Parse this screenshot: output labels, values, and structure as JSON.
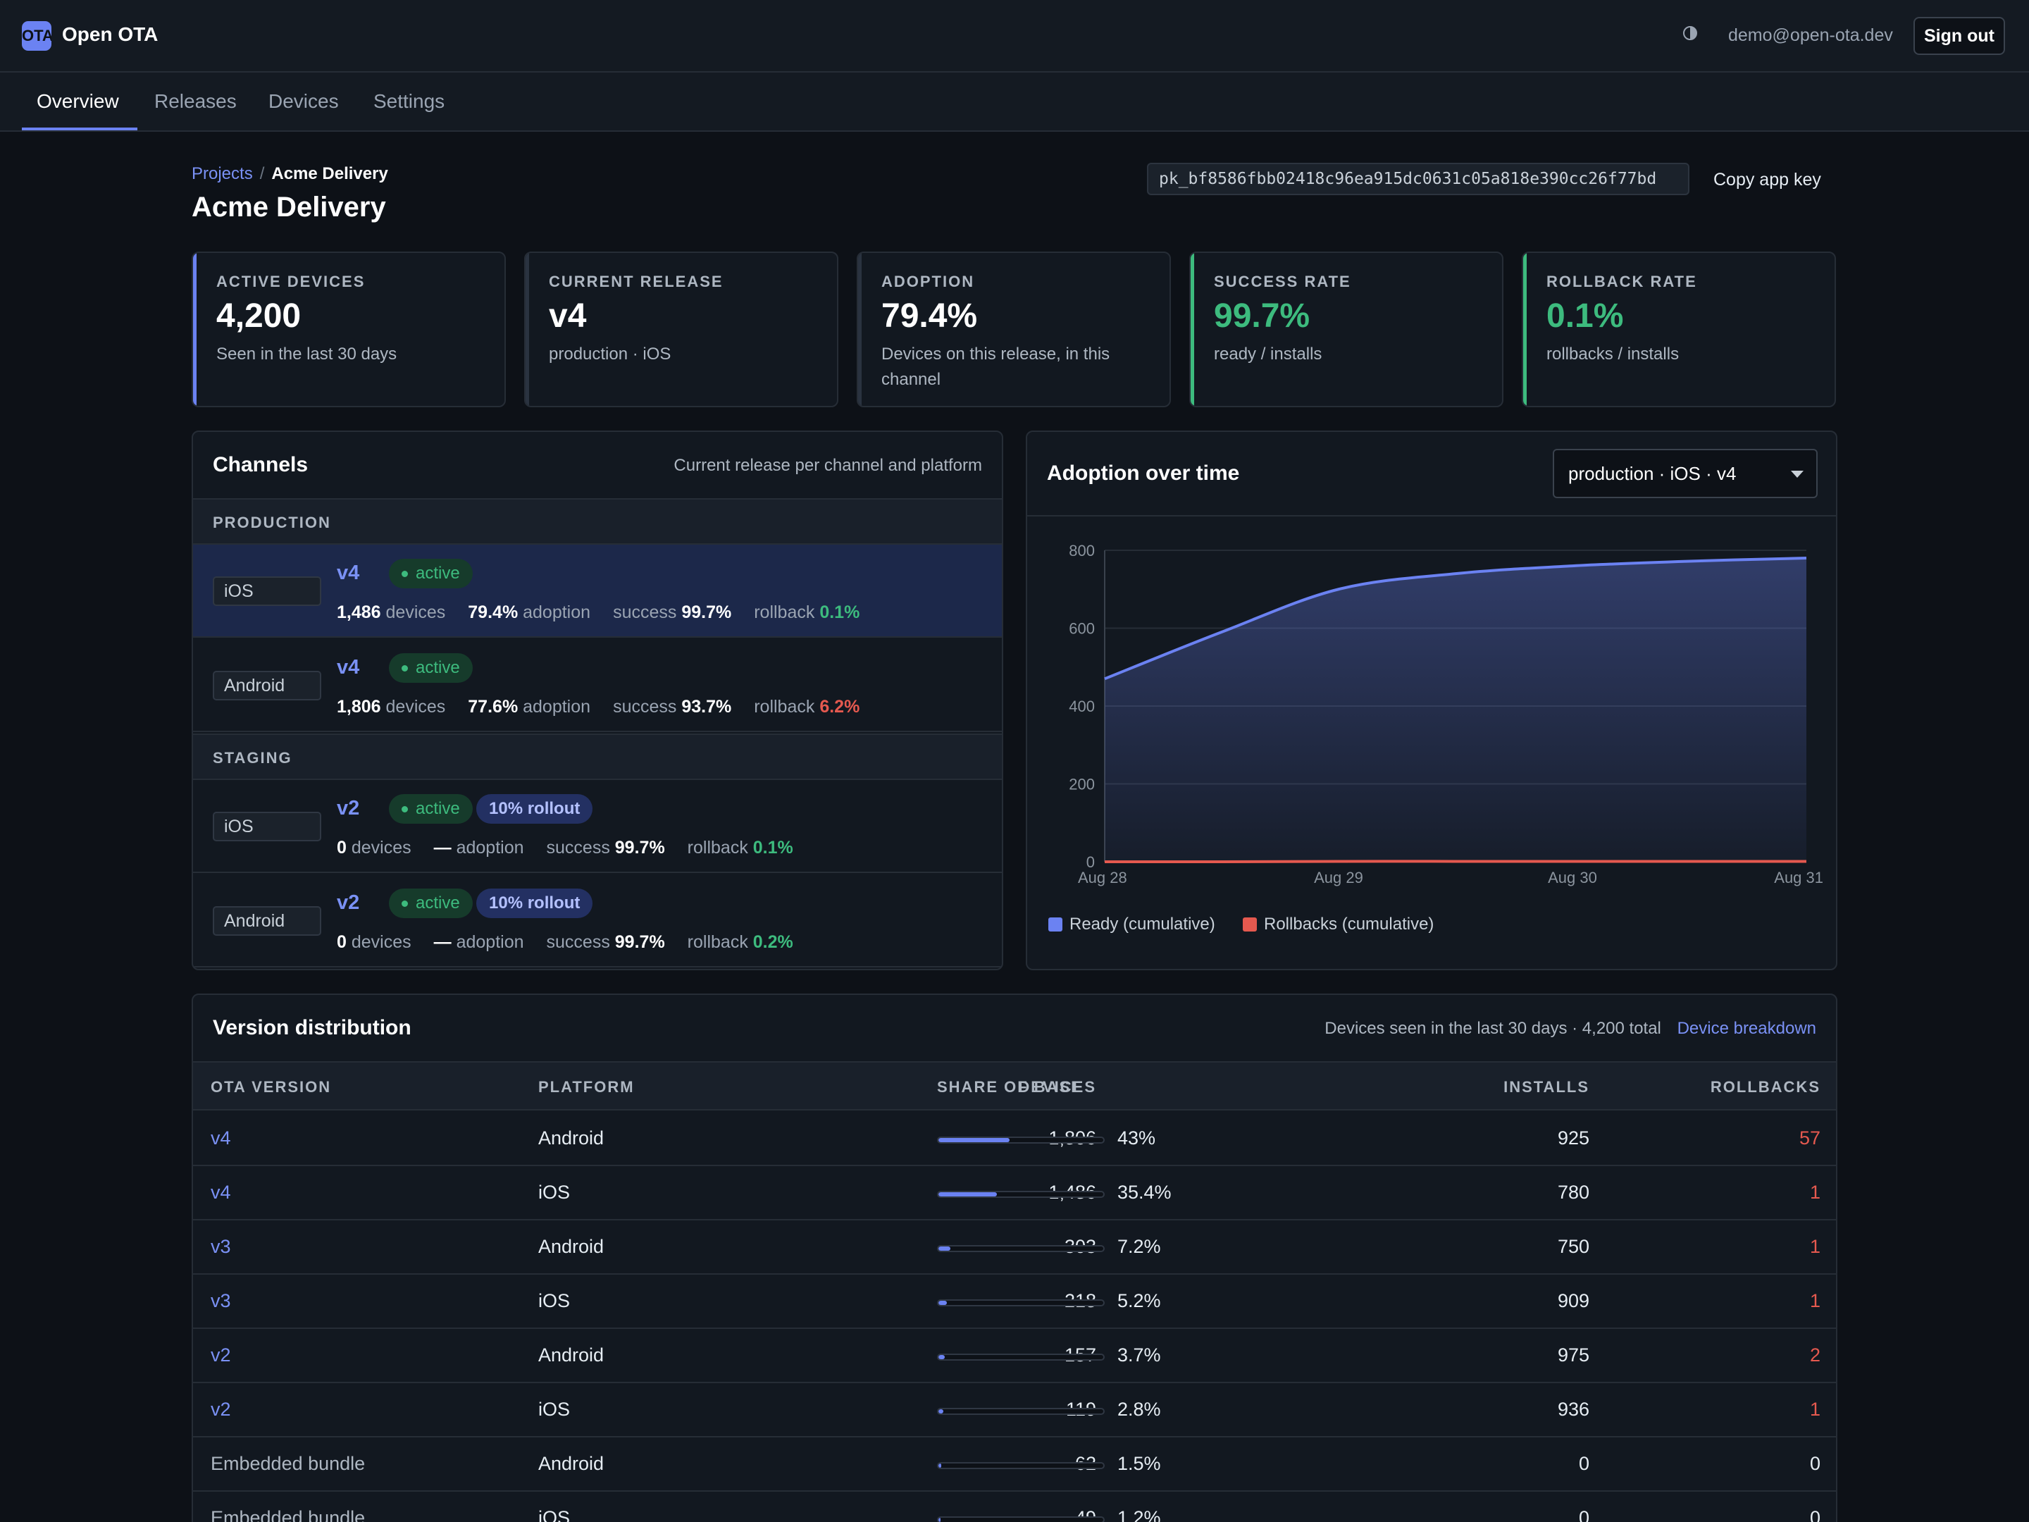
{
  "app": {
    "logo_letters": "OTA",
    "name": "Open OTA",
    "user_email": "demo@open-ota.dev",
    "sign_out_label": "Sign out"
  },
  "nav": {
    "tabs": [
      "Overview",
      "Releases",
      "Devices",
      "Settings"
    ],
    "active_tab": "Overview"
  },
  "breadcrumb": {
    "parent": "Projects",
    "separator": "/",
    "current": "Acme Delivery"
  },
  "page": {
    "title": "Acme Delivery",
    "app_key": "pk_bf8586fbb02418c96ea915dc0631c05a818e390cc26f77bd",
    "copy_key_label": "Copy app key"
  },
  "stats": [
    {
      "label": "ACTIVE DEVICES",
      "value": "4,200",
      "sub": "Seen in the last 30 days",
      "accent": "#6b82f2",
      "value_color": "default"
    },
    {
      "label": "CURRENT RELEASE",
      "value": "v4",
      "sub": "production · iOS",
      "accent": "#2a3340",
      "value_color": "default"
    },
    {
      "label": "ADOPTION",
      "value": "79.4%",
      "sub": "Devices on this release, in this channel",
      "accent": "#2a3340",
      "value_color": "default"
    },
    {
      "label": "SUCCESS RATE",
      "value": "99.7%",
      "sub": "ready / installs",
      "accent": "#3dbb7e",
      "value_color": "green"
    },
    {
      "label": "ROLLBACK RATE",
      "value": "0.1%",
      "sub": "rollbacks / installs",
      "accent": "#3dbb7e",
      "value_color": "green"
    }
  ],
  "channels": {
    "title": "Channels",
    "subtitle": "Current release per channel and platform",
    "sections": [
      {
        "name": "PRODUCTION",
        "rows": [
          {
            "platform": "iOS",
            "version": "v4",
            "status": "active",
            "rollout": "",
            "devices": "1,486",
            "devices_label": "devices",
            "adoption": "79.4%",
            "adoption_label": "adoption",
            "success_label": "success",
            "success": "99.7%",
            "rollback_label": "rollback",
            "rollback": "0.1%",
            "rollback_color": "green",
            "selected": true
          },
          {
            "platform": "Android",
            "version": "v4",
            "status": "active",
            "rollout": "",
            "devices": "1,806",
            "devices_label": "devices",
            "adoption": "77.6%",
            "adoption_label": "adoption",
            "success_label": "success",
            "success": "93.7%",
            "rollback_label": "rollback",
            "rollback": "6.2%",
            "rollback_color": "red",
            "selected": false
          }
        ]
      },
      {
        "name": "STAGING",
        "rows": [
          {
            "platform": "iOS",
            "version": "v2",
            "status": "active",
            "rollout": "10% rollout",
            "devices": "0",
            "devices_label": "devices",
            "adoption": "—",
            "adoption_label": "adoption",
            "success_label": "success",
            "success": "99.7%",
            "rollback_label": "rollback",
            "rollback": "0.1%",
            "rollback_color": "green",
            "selected": false
          },
          {
            "platform": "Android",
            "version": "v2",
            "status": "active",
            "rollout": "10% rollout",
            "devices": "0",
            "devices_label": "devices",
            "adoption": "—",
            "adoption_label": "adoption",
            "success_label": "success",
            "success": "99.7%",
            "rollback_label": "rollback",
            "rollback": "0.2%",
            "rollback_color": "green",
            "selected": false
          }
        ]
      }
    ]
  },
  "adoption_chart": {
    "title": "Adoption over time",
    "selected_option": "production · iOS · v4"
  },
  "chart_data": {
    "type": "area",
    "title": "Adoption over time",
    "x": [
      "Aug 28",
      "Aug 28.5",
      "Aug 29",
      "Aug 29.5",
      "Aug 30",
      "Aug 30.5",
      "Aug 31"
    ],
    "x_tick_labels": [
      "Aug 28",
      "Aug 29",
      "Aug 30",
      "Aug 31"
    ],
    "ylim": [
      0,
      800
    ],
    "y_ticks": [
      0,
      200,
      400,
      600,
      800
    ],
    "grid": true,
    "legend_position": "bottom-left",
    "series": [
      {
        "name": "Ready (cumulative)",
        "color": "#6b82f2",
        "values": [
          470,
          590,
          700,
          740,
          760,
          772,
          780
        ]
      },
      {
        "name": "Rollbacks (cumulative)",
        "color": "#e5594f",
        "values": [
          0,
          0,
          1,
          1,
          1,
          1,
          1
        ]
      }
    ]
  },
  "version_distribution": {
    "title": "Version distribution",
    "summary": "Devices seen in the last 30 days · 4,200 total",
    "breakdown_link": "Device breakdown",
    "columns": [
      "OTA VERSION",
      "PLATFORM",
      "DEVICES",
      "SHARE OF BASE",
      "INSTALLS",
      "ROLLBACKS"
    ],
    "rows": [
      {
        "version": "v4",
        "is_link": true,
        "platform": "Android",
        "devices": "1,806",
        "share": "43%",
        "share_value": 0.43,
        "installs": "925",
        "rollbacks": "57"
      },
      {
        "version": "v4",
        "is_link": true,
        "platform": "iOS",
        "devices": "1,486",
        "share": "35.4%",
        "share_value": 0.354,
        "installs": "780",
        "rollbacks": "1"
      },
      {
        "version": "v3",
        "is_link": true,
        "platform": "Android",
        "devices": "303",
        "share": "7.2%",
        "share_value": 0.072,
        "installs": "750",
        "rollbacks": "1"
      },
      {
        "version": "v3",
        "is_link": true,
        "platform": "iOS",
        "devices": "218",
        "share": "5.2%",
        "share_value": 0.052,
        "installs": "909",
        "rollbacks": "1"
      },
      {
        "version": "v2",
        "is_link": true,
        "platform": "Android",
        "devices": "157",
        "share": "3.7%",
        "share_value": 0.037,
        "installs": "975",
        "rollbacks": "2"
      },
      {
        "version": "v2",
        "is_link": true,
        "platform": "iOS",
        "devices": "119",
        "share": "2.8%",
        "share_value": 0.028,
        "installs": "936",
        "rollbacks": "1"
      },
      {
        "version": "Embedded bundle",
        "is_link": false,
        "platform": "Android",
        "devices": "62",
        "share": "1.5%",
        "share_value": 0.015,
        "installs": "0",
        "rollbacks": "0"
      },
      {
        "version": "Embedded bundle",
        "is_link": false,
        "platform": "iOS",
        "devices": "49",
        "share": "1.2%",
        "share_value": 0.012,
        "installs": "0",
        "rollbacks": "0"
      }
    ]
  },
  "colors": {
    "accent": "#6b82f2",
    "success": "#3dbb7e",
    "danger": "#e5594f",
    "background": "#0d1117",
    "panel": "#121820"
  }
}
